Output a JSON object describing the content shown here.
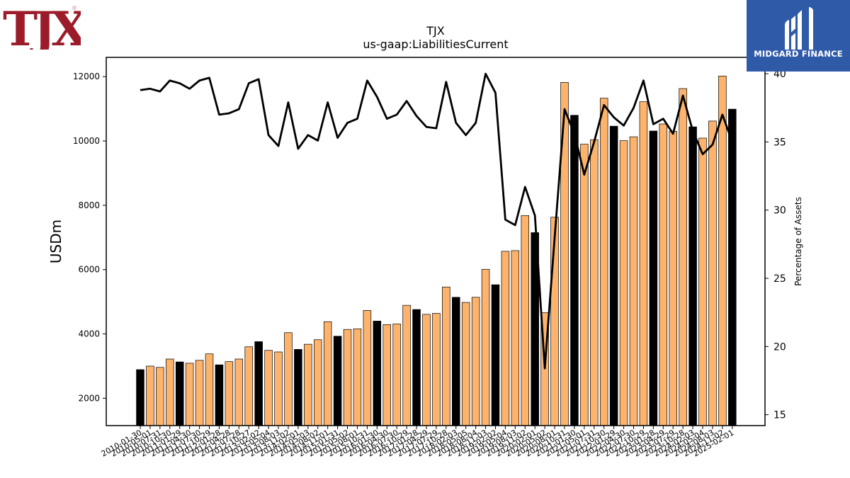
{
  "header": {
    "company_logo_text": "TJX",
    "company_logo_mark": "®",
    "brand_name": "MIDGARD FINANCE"
  },
  "colors": {
    "bar_default": "#fdb36b",
    "bar_highlight": "#000000",
    "line": "#000000",
    "logo_red": "#9b1b2a",
    "brand_blue": "#2f5aa8"
  },
  "chart_data": {
    "type": "bar",
    "title": "TJX",
    "subtitle": "us-gaap:LiabilitiesCurrent",
    "ylabel": "USDm",
    "y2label": "Percentage of Assets",
    "ylim": [
      1150,
      12600
    ],
    "y2lim": [
      14.2,
      41.2
    ],
    "yticks": [
      2000,
      4000,
      6000,
      8000,
      10000,
      12000
    ],
    "y2ticks": [
      15,
      20,
      25,
      30,
      35,
      40
    ],
    "xtick_labels": [
      "2010-01-30",
      "2010-05-01",
      "2010-07-31",
      "2010-10-30",
      "2011-01-29",
      "2011-04-30",
      "2011-07-30",
      "2011-10-29",
      "2012-01-28",
      "2012-04-28",
      "2012-07-28",
      "2012-10-27",
      "2013-02-02",
      "2013-05-04",
      "2013-08-03",
      "2013-11-02",
      "2014-02-01",
      "2014-05-03",
      "2014-08-02",
      "2014-11-01",
      "2015-01-31",
      "2015-05-02",
      "2015-08-01",
      "2015-10-31",
      "2016-01-30",
      "2016-04-30",
      "2016-07-30",
      "2016-10-29",
      "2017-01-28",
      "2017-04-29",
      "2017-07-29",
      "2017-10-28",
      "2018-02-03",
      "2018-05-05",
      "2018-08-04",
      "2018-11-03",
      "2019-02-02",
      "2019-05-04",
      "2019-08-03",
      "2019-11-02",
      "2020-02-01",
      "2020-05-02",
      "2020-08-01",
      "2020-10-31",
      "2021-01-30",
      "2021-05-01",
      "2021-07-31",
      "2021-10-30",
      "2022-01-29",
      "2022-04-30",
      "2022-07-30",
      "2022-10-29",
      "2023-01-28",
      "2023-04-29",
      "2023-07-29",
      "2023-10-28",
      "2024-02-03",
      "2024-05-04",
      "2024-08-03",
      "2024-11-02",
      "2025-02-01"
    ],
    "values": [
      2890,
      3000,
      2960,
      3220,
      3130,
      3090,
      3180,
      3380,
      3040,
      3140,
      3220,
      3600,
      3760,
      3490,
      3440,
      4040,
      3520,
      3680,
      3820,
      4380,
      3930,
      4140,
      4160,
      4730,
      4400,
      4290,
      4310,
      4890,
      4760,
      4610,
      4640,
      5460,
      5140,
      4980,
      5140,
      6010,
      5530,
      6570,
      6590,
      7680,
      7150,
      4660,
      7630,
      11820,
      10800,
      9900,
      10040,
      11330,
      10460,
      10010,
      10130,
      11220,
      10310,
      10530,
      10300,
      11630,
      10440,
      10090,
      10620,
      12020,
      10990
    ],
    "highlight": [
      1,
      0,
      0,
      0,
      1,
      0,
      0,
      0,
      1,
      0,
      0,
      0,
      1,
      0,
      0,
      0,
      1,
      0,
      0,
      0,
      1,
      0,
      0,
      0,
      1,
      0,
      0,
      0,
      1,
      0,
      0,
      0,
      1,
      0,
      0,
      0,
      1,
      0,
      0,
      0,
      1,
      0,
      0,
      0,
      1,
      0,
      0,
      0,
      1,
      0,
      0,
      0,
      1,
      0,
      0,
      0,
      1,
      0,
      0,
      0,
      1
    ],
    "percent_of_assets": [
      38.8,
      38.9,
      38.7,
      39.5,
      39.3,
      38.9,
      39.5,
      39.7,
      37.0,
      37.1,
      37.4,
      39.3,
      39.6,
      35.5,
      34.7,
      37.9,
      34.5,
      35.5,
      35.1,
      37.9,
      35.3,
      36.4,
      36.7,
      39.5,
      38.3,
      36.7,
      37.0,
      38.0,
      36.9,
      36.1,
      36.0,
      39.4,
      36.4,
      35.5,
      36.4,
      40.0,
      38.6,
      29.3,
      28.9,
      31.7,
      29.6,
      18.4,
      28.0,
      37.4,
      35.6,
      32.6,
      35.0,
      37.7,
      36.8,
      36.2,
      37.5,
      39.5,
      36.3,
      36.7,
      35.6,
      38.4,
      35.8,
      34.1,
      34.8,
      37.0,
      35.0
    ]
  }
}
